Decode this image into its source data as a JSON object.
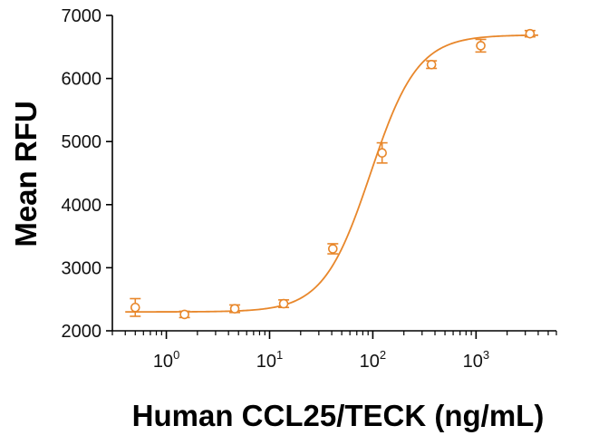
{
  "chart_data": {
    "type": "scatter",
    "title": "",
    "xlabel": "Human CCL25/TECK (ng/mL)",
    "ylabel": "Mean RFU",
    "xscale": "log",
    "xlim": [
      0.3,
      6000
    ],
    "ylim": [
      2000,
      7000
    ],
    "grid": false,
    "legend": "none",
    "colors": {
      "series": "#E8872B",
      "axis": "#000000"
    },
    "x_ticks": [
      {
        "value": 1,
        "base": "10",
        "exp": "0"
      },
      {
        "value": 10,
        "base": "10",
        "exp": "1"
      },
      {
        "value": 100,
        "base": "10",
        "exp": "2"
      },
      {
        "value": 1000,
        "base": "10",
        "exp": "3"
      }
    ],
    "y_ticks": [
      {
        "value": 2000,
        "label": "2000"
      },
      {
        "value": 3000,
        "label": "3000"
      },
      {
        "value": 4000,
        "label": "4000"
      },
      {
        "value": 5000,
        "label": "5000"
      },
      {
        "value": 6000,
        "label": "6000"
      },
      {
        "value": 7000,
        "label": "7000"
      }
    ],
    "series": [
      {
        "points": [
          {
            "x": 0.5,
            "y": 2370,
            "err": 140
          },
          {
            "x": 1.5,
            "y": 2260,
            "err": 50
          },
          {
            "x": 4.6,
            "y": 2350,
            "err": 60
          },
          {
            "x": 13.7,
            "y": 2430,
            "err": 60
          },
          {
            "x": 41,
            "y": 3300,
            "err": 80
          },
          {
            "x": 123,
            "y": 4820,
            "err": 160
          },
          {
            "x": 370,
            "y": 6220,
            "err": 60
          },
          {
            "x": 1111,
            "y": 6520,
            "err": 100
          },
          {
            "x": 3333,
            "y": 6710,
            "err": 50
          }
        ],
        "fit": {
          "model": "4PL",
          "bottom": 2300,
          "top": 6690,
          "ec50": 95,
          "hill": 1.9
        }
      }
    ]
  }
}
